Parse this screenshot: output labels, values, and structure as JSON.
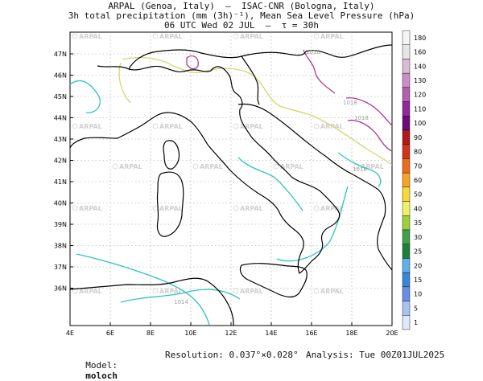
{
  "header": {
    "line1": "ARPAL (Genoa, Italy)  —  ISAC-CNR (Bologna, Italy)",
    "line2": "3h total precipitation (mm (3h)⁻¹), Mean Sea Level Pressure (hPa)",
    "line3": "06 UTC Wed 02 JUL  —  τ = 30h"
  },
  "map": {
    "lat_labels": [
      "47N",
      "46N",
      "45N",
      "44N",
      "43N",
      "42N",
      "41N",
      "40N",
      "39N",
      "38N",
      "37N",
      "36N"
    ],
    "lon_labels": [
      "4E",
      "6E",
      "8E",
      "10E",
      "12E",
      "14E",
      "16E",
      "18E",
      "20E"
    ],
    "isobar_labels": [
      "1016",
      "1018",
      "1018",
      "1016",
      "1014"
    ],
    "watermark": "ARPAL",
    "colors": {
      "coast": "#000000",
      "isobar_1014": "#2ec4c0",
      "isobar_1016": "#d4d66a",
      "isobar_1018": "#b03a8c",
      "grid": "#9a9a9a"
    }
  },
  "colorbar": {
    "levels": [
      "180",
      "160",
      "140",
      "130",
      "120",
      "110",
      "100",
      "90",
      "80",
      "70",
      "60",
      "50",
      "40",
      "35",
      "30",
      "25",
      "20",
      "15",
      "10",
      "5",
      "1"
    ],
    "colors": [
      "#f4f4f4",
      "#e6e6e6",
      "#d7bcd6",
      "#c98fc6",
      "#b15fb3",
      "#8e2a9a",
      "#6a0d76",
      "#b21a1a",
      "#d6301f",
      "#ee6a1d",
      "#f6a32a",
      "#f6d83a",
      "#efef6a",
      "#9fcf3a",
      "#3fa04a",
      "#1e7f3a",
      "#5fb0e6",
      "#3b86d6",
      "#6a8fe0",
      "#a9c3f0",
      "#dfe9fa"
    ]
  },
  "footer": {
    "model_label": "Model:",
    "model_value": "moloch",
    "resolution": "Resolution: 0.037°×0.028°",
    "analysis": "Analysis: Tue 00Z01JUL2025"
  }
}
